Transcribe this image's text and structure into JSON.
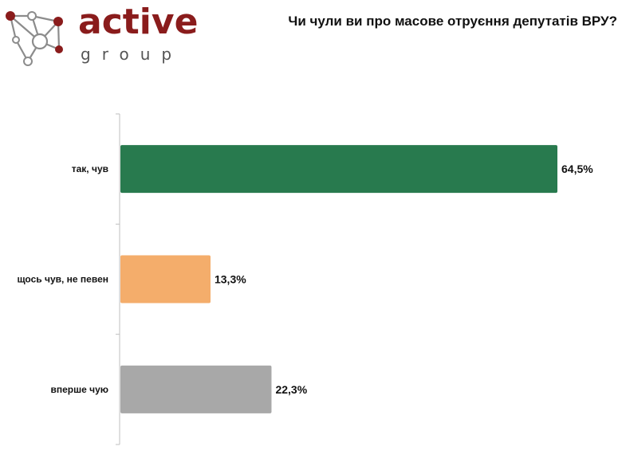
{
  "logo": {
    "word": "active",
    "sub": "group",
    "node_color": "#8a1c1c",
    "line_color": "#888888"
  },
  "chart_data": {
    "type": "bar",
    "orientation": "horizontal",
    "title": "Чи чули ви про масове отруєння депутатів ВРУ?",
    "xlabel": "",
    "ylabel": "",
    "xlim": [
      0,
      70
    ],
    "grid": false,
    "categories": [
      "так, чув",
      "щось чув, не певен",
      "вперше чую"
    ],
    "values": [
      64.5,
      13.3,
      22.3
    ],
    "value_labels": [
      "64,5%",
      "13,3%",
      "22,3%"
    ],
    "colors": [
      "#287a4e",
      "#f4ad6b",
      "#a8a8a8"
    ]
  }
}
